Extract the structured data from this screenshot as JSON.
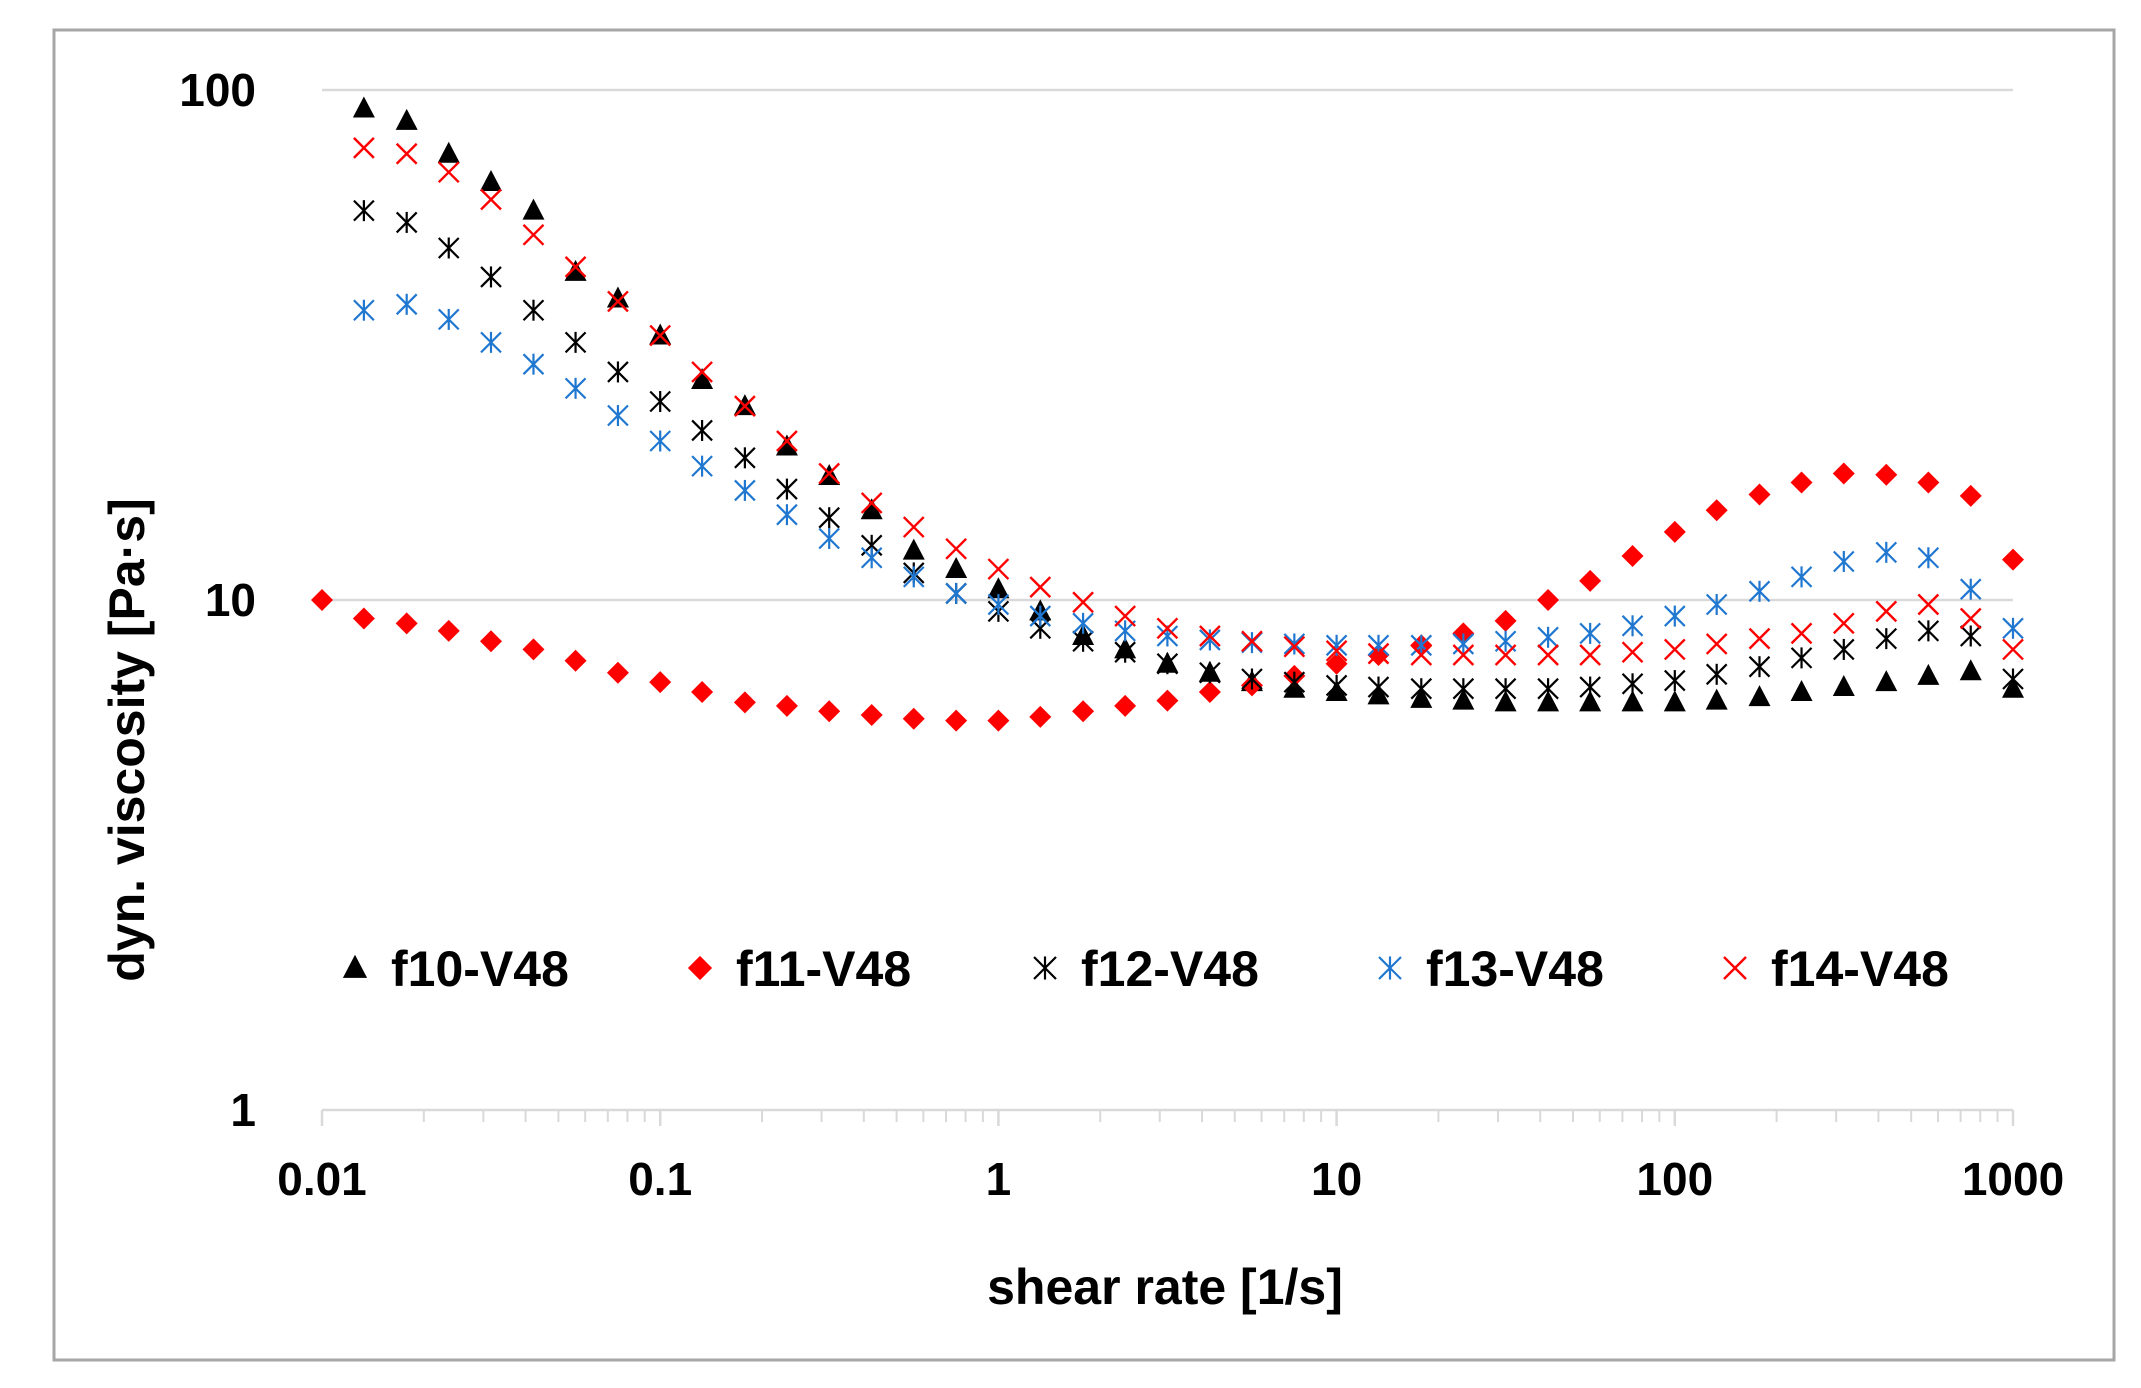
{
  "chart_data": {
    "type": "scatter",
    "xscale": "log",
    "yscale": "log",
    "xlim": [
      0.01,
      1000
    ],
    "ylim": [
      1,
      100
    ],
    "xlabel": "shear rate [1/s]",
    "ylabel": "dyn. viscosity [Pa·s]",
    "x_ticks": [
      "0.01",
      "0.1",
      "1",
      "10",
      "100",
      "1000"
    ],
    "y_ticks": [
      "1",
      "10",
      "100"
    ],
    "grid": "horizontal major lines",
    "legend_position": "bottom-inside",
    "colors": {
      "black": "#000000",
      "red": "#ff0000",
      "blue": "#1f77d0",
      "grid": "#d9d9d9",
      "frame": "#a6a6a6"
    },
    "series": [
      {
        "name": "f10-V48",
        "marker": "triangle",
        "color": "#000000",
        "x": [
          0.0133,
          0.0178,
          0.0237,
          0.0316,
          0.0422,
          0.0562,
          0.075,
          0.1,
          0.133,
          0.178,
          0.237,
          0.316,
          0.422,
          0.562,
          0.75,
          1.0,
          1.33,
          1.78,
          2.37,
          3.16,
          4.22,
          5.62,
          7.5,
          10,
          13.3,
          17.8,
          23.7,
          31.6,
          42.2,
          56.2,
          75,
          100,
          133,
          178,
          237,
          316,
          422,
          562,
          750,
          1000
        ],
        "y": [
          92,
          87,
          75,
          66,
          58,
          44,
          39,
          33,
          27,
          24,
          20,
          17.5,
          15,
          12.5,
          11.5,
          10.5,
          9.5,
          8.5,
          8.0,
          7.5,
          7.2,
          6.9,
          6.7,
          6.6,
          6.5,
          6.4,
          6.35,
          6.3,
          6.3,
          6.3,
          6.3,
          6.3,
          6.35,
          6.45,
          6.6,
          6.75,
          6.9,
          7.1,
          7.25,
          6.7
        ]
      },
      {
        "name": "f11-V48",
        "marker": "diamond",
        "color": "#ff0000",
        "x": [
          0.01,
          0.0133,
          0.0178,
          0.0237,
          0.0316,
          0.0422,
          0.0562,
          0.075,
          0.1,
          0.133,
          0.178,
          0.237,
          0.316,
          0.422,
          0.562,
          0.75,
          1.0,
          1.33,
          1.78,
          2.37,
          3.16,
          4.22,
          5.62,
          7.5,
          10,
          13.3,
          17.8,
          23.7,
          31.6,
          42.2,
          56.2,
          75,
          100,
          133,
          178,
          237,
          316,
          422,
          562,
          750,
          1000
        ],
        "y": [
          10,
          9.2,
          9.0,
          8.7,
          8.3,
          8.0,
          7.6,
          7.2,
          6.9,
          6.6,
          6.3,
          6.2,
          6.05,
          5.95,
          5.85,
          5.8,
          5.8,
          5.9,
          6.05,
          6.2,
          6.35,
          6.6,
          6.8,
          7.1,
          7.5,
          7.8,
          8.15,
          8.6,
          9.1,
          10.0,
          10.9,
          12.2,
          13.6,
          15.0,
          16.1,
          17.0,
          17.7,
          17.6,
          17.0,
          16.0,
          12.0
        ]
      },
      {
        "name": "f12-V48",
        "marker": "asterisk",
        "color": "#000000",
        "x": [
          0.0133,
          0.0178,
          0.0237,
          0.0316,
          0.0422,
          0.0562,
          0.075,
          0.1,
          0.133,
          0.178,
          0.237,
          0.316,
          0.422,
          0.562,
          0.75,
          1.0,
          1.33,
          1.78,
          2.37,
          3.16,
          4.22,
          5.62,
          7.5,
          10,
          13.3,
          17.8,
          23.7,
          31.6,
          42.2,
          56.2,
          75,
          100,
          133,
          178,
          237,
          316,
          422,
          562,
          750,
          1000
        ],
        "y": [
          58,
          55,
          49,
          43,
          37,
          32,
          28,
          24.5,
          21.5,
          19,
          16.5,
          14.5,
          12.8,
          11.3,
          10.3,
          9.5,
          8.8,
          8.3,
          7.9,
          7.5,
          7.2,
          7.0,
          6.9,
          6.8,
          6.75,
          6.7,
          6.7,
          6.7,
          6.7,
          6.75,
          6.85,
          6.95,
          7.15,
          7.4,
          7.7,
          8.0,
          8.4,
          8.7,
          8.5,
          7.0
        ]
      },
      {
        "name": "f13-V48",
        "marker": "asterisk",
        "color": "#1f77d0",
        "x": [
          0.0133,
          0.0178,
          0.0237,
          0.0316,
          0.0422,
          0.0562,
          0.075,
          0.1,
          0.133,
          0.178,
          0.237,
          0.316,
          0.422,
          0.562,
          0.75,
          1.0,
          1.33,
          1.78,
          2.37,
          3.16,
          4.22,
          5.62,
          7.5,
          10,
          13.3,
          17.8,
          23.7,
          31.6,
          42.2,
          56.2,
          75,
          100,
          133,
          178,
          237,
          316,
          422,
          562,
          750,
          1000
        ],
        "y": [
          37,
          38,
          35.5,
          32,
          29,
          26,
          23,
          20.5,
          18.3,
          16.4,
          14.7,
          13.2,
          12.1,
          11.1,
          10.3,
          9.8,
          9.3,
          9.0,
          8.7,
          8.5,
          8.35,
          8.25,
          8.2,
          8.15,
          8.15,
          8.15,
          8.2,
          8.3,
          8.45,
          8.6,
          8.9,
          9.3,
          9.8,
          10.4,
          11.1,
          11.9,
          12.4,
          12.1,
          10.5,
          8.8
        ]
      },
      {
        "name": "f14-V48",
        "marker": "x",
        "color": "#ff0000",
        "x": [
          0.0133,
          0.0178,
          0.0237,
          0.0316,
          0.0422,
          0.0562,
          0.075,
          0.1,
          0.133,
          0.178,
          0.237,
          0.316,
          0.422,
          0.562,
          0.75,
          1.0,
          1.33,
          1.78,
          2.37,
          3.16,
          4.22,
          5.62,
          7.5,
          10,
          13.3,
          17.8,
          23.7,
          31.6,
          42.2,
          56.2,
          75,
          100,
          133,
          178,
          237,
          316,
          422,
          562,
          750,
          1000
        ],
        "y": [
          77,
          75,
          69,
          61,
          52,
          45,
          38.5,
          33,
          28,
          24,
          20.5,
          17.7,
          15.5,
          13.9,
          12.6,
          11.5,
          10.6,
          9.9,
          9.3,
          8.8,
          8.5,
          8.3,
          8.1,
          7.95,
          7.85,
          7.8,
          7.8,
          7.8,
          7.8,
          7.8,
          7.9,
          8.0,
          8.2,
          8.4,
          8.6,
          9.0,
          9.5,
          9.8,
          9.2,
          8.0
        ]
      }
    ]
  }
}
